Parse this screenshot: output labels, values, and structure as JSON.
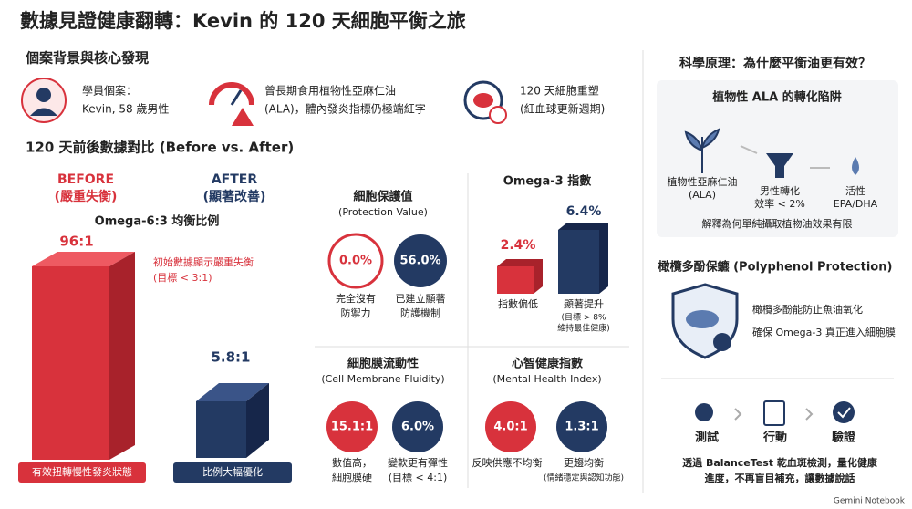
{
  "title": "數據見證健康翻轉：Kevin 的 120 天細胞平衡之旅",
  "background": {
    "heading": "個案背景與核心發現",
    "items": [
      {
        "lines": [
          "學員個案：",
          "Kevin, 58 歲男性"
        ]
      },
      {
        "lines": [
          "曾長期食用植物性亞麻仁油",
          "(ALA)，體內發炎指標仍極端紅字"
        ]
      },
      {
        "lines": [
          "120 天細胞重塑",
          "(紅血球更新週期)"
        ]
      }
    ]
  },
  "comparison": {
    "heading": "120 天前後數據對比 (Before vs. After)",
    "before": {
      "label": "BEFORE",
      "status": "(嚴重失衡)"
    },
    "after": {
      "label": "AFTER",
      "status": "(顯著改善)"
    },
    "ratio_title": "Omega-6:3 均衡比例",
    "before_value": "96:1",
    "after_value": "5.8:1",
    "note": [
      "初始數據顯示嚴重失衡",
      "(目標 < 3:1)"
    ],
    "before_badge": "有效扭轉慢性發炎狀態",
    "after_badge": "比例大幅優化"
  },
  "panels": {
    "protection": {
      "title": "細胞保護值",
      "subtitle": "(Protection Value)",
      "before": "0.0%",
      "after": "56.0%",
      "before_caption": [
        "完全沒有",
        "防禦力"
      ],
      "after_caption": [
        "已建立顯著",
        "防護機制"
      ]
    },
    "omega3": {
      "title": "Omega-3 指數",
      "before": "2.4%",
      "after": "6.4%",
      "before_caption": [
        "指數偏低"
      ],
      "after_caption": [
        "顯著提升",
        "(目標 > 8%",
        "維持最佳健康)"
      ]
    },
    "fluidity": {
      "title": "細胞膜流動性",
      "subtitle": "(Cell Membrane Fluidity)",
      "before": "15.1:1",
      "after": "6.0%",
      "before_caption": [
        "數值高，",
        "細胞膜硬"
      ],
      "after_caption": [
        "變軟更有彈性",
        "(目標 < 4:1)"
      ]
    },
    "mental": {
      "title": "心智健康指數",
      "subtitle": "(Mental Health Index)",
      "before": "4.0:1",
      "after": "1.3:1",
      "before_caption": [
        "反映供應不均衡"
      ],
      "after_caption": [
        "更趨均衡",
        "(情緒穩定與認知功能)"
      ]
    }
  },
  "science": {
    "heading": "科學原理：為什麼平衡油更有效？",
    "ala": {
      "title": "植物性 ALA 的轉化陷阱",
      "steps": [
        [
          "植物性亞麻仁油",
          "(ALA)"
        ],
        [
          "男性轉化",
          "效率 < 2%"
        ],
        [
          "活性",
          "EPA/DHA"
        ]
      ],
      "note": "解釋為何單純攝取植物油效果有限"
    },
    "polyphenol": {
      "title": "橄欖多酚保鑣 (Polyphenol Protection)",
      "lines": [
        "橄欖多酚能防止魚油氧化",
        "確保 Omega-3 真正進入細胞膜"
      ]
    },
    "process": {
      "steps": [
        "測試",
        "行動",
        "驗證"
      ],
      "lines": [
        "透過 BalanceTest 乾血斑檢測，量化健康",
        "進度，不再盲目補充，讓數據說話"
      ]
    }
  },
  "footer": "Gemini Notebook"
}
